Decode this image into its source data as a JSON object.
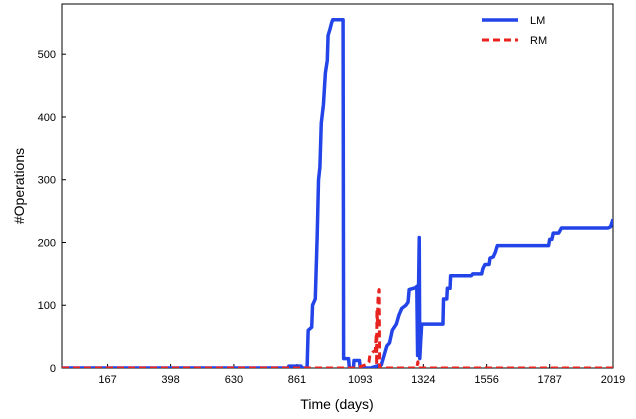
{
  "chart_data": {
    "type": "line",
    "title": "",
    "xlabel": "Time (days)",
    "ylabel": "#Operations",
    "xlim": [
      0,
      2019
    ],
    "ylim": [
      0,
      580
    ],
    "x_ticks": [
      167,
      398,
      630,
      861,
      1093,
      1324,
      1556,
      1787,
      2019
    ],
    "y_ticks": [
      0,
      100,
      200,
      300,
      400,
      500
    ],
    "grid": false,
    "legend": "top-right",
    "series": [
      {
        "name": "LM",
        "color": "#2244e8",
        "dash": "solid",
        "points": [
          [
            0,
            0
          ],
          [
            830,
            0
          ],
          [
            831,
            3
          ],
          [
            876,
            3
          ],
          [
            877,
            0
          ],
          [
            898,
            0
          ],
          [
            902,
            60
          ],
          [
            915,
            65
          ],
          [
            918,
            100
          ],
          [
            928,
            110
          ],
          [
            935,
            210
          ],
          [
            940,
            300
          ],
          [
            945,
            320
          ],
          [
            950,
            390
          ],
          [
            958,
            420
          ],
          [
            965,
            470
          ],
          [
            972,
            490
          ],
          [
            975,
            530
          ],
          [
            982,
            540
          ],
          [
            988,
            550
          ],
          [
            992,
            555
          ],
          [
            1030,
            555
          ],
          [
            1032,
            15
          ],
          [
            1050,
            15
          ],
          [
            1053,
            0
          ],
          [
            1068,
            0
          ],
          [
            1070,
            12
          ],
          [
            1090,
            12
          ],
          [
            1093,
            0
          ],
          [
            1110,
            0
          ],
          [
            1130,
            0
          ],
          [
            1170,
            5
          ],
          [
            1190,
            35
          ],
          [
            1200,
            40
          ],
          [
            1210,
            60
          ],
          [
            1225,
            70
          ],
          [
            1235,
            85
          ],
          [
            1245,
            95
          ],
          [
            1260,
            100
          ],
          [
            1268,
            105
          ],
          [
            1272,
            125
          ],
          [
            1296,
            128
          ],
          [
            1300,
            130
          ],
          [
            1303,
            20
          ],
          [
            1309,
            208
          ],
          [
            1311,
            15
          ],
          [
            1314,
            40
          ],
          [
            1318,
            70
          ],
          [
            1330,
            70
          ],
          [
            1396,
            70
          ],
          [
            1398,
            110
          ],
          [
            1410,
            110
          ],
          [
            1412,
            127
          ],
          [
            1422,
            127
          ],
          [
            1424,
            147
          ],
          [
            1500,
            147
          ],
          [
            1505,
            150
          ],
          [
            1538,
            150
          ],
          [
            1542,
            158
          ],
          [
            1550,
            165
          ],
          [
            1565,
            165
          ],
          [
            1568,
            175
          ],
          [
            1580,
            177
          ],
          [
            1588,
            185
          ],
          [
            1595,
            195
          ],
          [
            1783,
            195
          ],
          [
            1787,
            205
          ],
          [
            1795,
            205
          ],
          [
            1800,
            215
          ],
          [
            1820,
            215
          ],
          [
            1830,
            223
          ],
          [
            2000,
            223
          ],
          [
            2010,
            225
          ],
          [
            2019,
            237
          ]
        ]
      },
      {
        "name": "RM",
        "color": "#e8231f",
        "dash": "dashed",
        "points": [
          [
            0,
            0
          ],
          [
            1050,
            0
          ],
          [
            1070,
            0
          ],
          [
            1100,
            3
          ],
          [
            1118,
            6
          ],
          [
            1125,
            10
          ],
          [
            1128,
            20
          ],
          [
            1138,
            25
          ],
          [
            1148,
            28
          ],
          [
            1152,
            55
          ],
          [
            1153,
            5
          ],
          [
            1154,
            90
          ],
          [
            1156,
            75
          ],
          [
            1158,
            110
          ],
          [
            1160,
            120
          ],
          [
            1162,
            125
          ],
          [
            1164,
            0
          ],
          [
            1300,
            0
          ],
          [
            1304,
            10
          ],
          [
            1306,
            0
          ],
          [
            2019,
            0
          ]
        ]
      }
    ]
  }
}
